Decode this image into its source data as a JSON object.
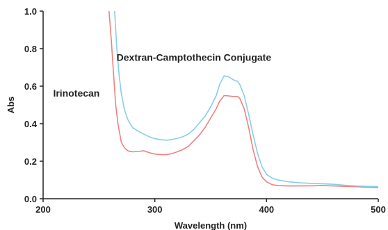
{
  "chart_data": {
    "type": "line",
    "title": "",
    "xlabel": "Wavelength (nm)",
    "ylabel": "Abs",
    "xlim": [
      200,
      500
    ],
    "ylim": [
      0.0,
      1.0
    ],
    "x_ticks": [
      200,
      300,
      400,
      500
    ],
    "y_ticks": [
      0.0,
      0.2,
      0.4,
      0.6,
      0.8,
      1.0
    ],
    "x_tick_labels": [
      "200",
      "300",
      "400",
      "500"
    ],
    "y_tick_labels": [
      "0.0",
      "0.2",
      "0.4",
      "0.6",
      "0.8",
      "1.0"
    ],
    "grid": false,
    "annotations": [
      {
        "text": "Dextran-Camptothecin Conjugate",
        "x": 335,
        "y": 0.735
      },
      {
        "text": "Irinotecan",
        "x": 209,
        "y": 0.545
      }
    ],
    "series": [
      {
        "color": "#f08080",
        "x": [
          259,
          261,
          263,
          265,
          267,
          270,
          273,
          276,
          280,
          285,
          290,
          295,
          300,
          305,
          310,
          315,
          320,
          325,
          330,
          335,
          340,
          345,
          350,
          355,
          358,
          362,
          366,
          370,
          374,
          376,
          380,
          384,
          388,
          392,
          396,
          400,
          405,
          410,
          420,
          430,
          440,
          450,
          460,
          470,
          480,
          490,
          500
        ],
        "y": [
          1.0,
          0.85,
          0.67,
          0.5,
          0.4,
          0.3,
          0.27,
          0.255,
          0.25,
          0.252,
          0.256,
          0.245,
          0.238,
          0.235,
          0.235,
          0.24,
          0.25,
          0.262,
          0.28,
          0.31,
          0.34,
          0.38,
          0.43,
          0.48,
          0.52,
          0.55,
          0.548,
          0.545,
          0.545,
          0.535,
          0.48,
          0.38,
          0.26,
          0.17,
          0.115,
          0.09,
          0.075,
          0.07,
          0.068,
          0.068,
          0.069,
          0.07,
          0.068,
          0.066,
          0.064,
          0.062,
          0.06
        ]
      },
      {
        "color": "#87ceeb",
        "x": [
          264,
          266,
          268,
          270,
          273,
          276,
          280,
          285,
          290,
          295,
          300,
          305,
          310,
          315,
          320,
          325,
          330,
          335,
          340,
          345,
          350,
          355,
          358,
          362,
          366,
          370,
          374,
          376,
          380,
          384,
          388,
          392,
          396,
          400,
          405,
          410,
          420,
          430,
          440,
          450,
          460,
          470,
          480,
          490,
          500
        ],
        "y": [
          1.0,
          0.8,
          0.66,
          0.56,
          0.47,
          0.42,
          0.38,
          0.36,
          0.345,
          0.33,
          0.32,
          0.315,
          0.312,
          0.315,
          0.322,
          0.33,
          0.345,
          0.37,
          0.405,
          0.44,
          0.49,
          0.55,
          0.61,
          0.655,
          0.65,
          0.635,
          0.625,
          0.61,
          0.55,
          0.45,
          0.34,
          0.24,
          0.17,
          0.13,
          0.11,
          0.1,
          0.09,
          0.085,
          0.082,
          0.08,
          0.077,
          0.072,
          0.068,
          0.066,
          0.065
        ]
      }
    ]
  }
}
